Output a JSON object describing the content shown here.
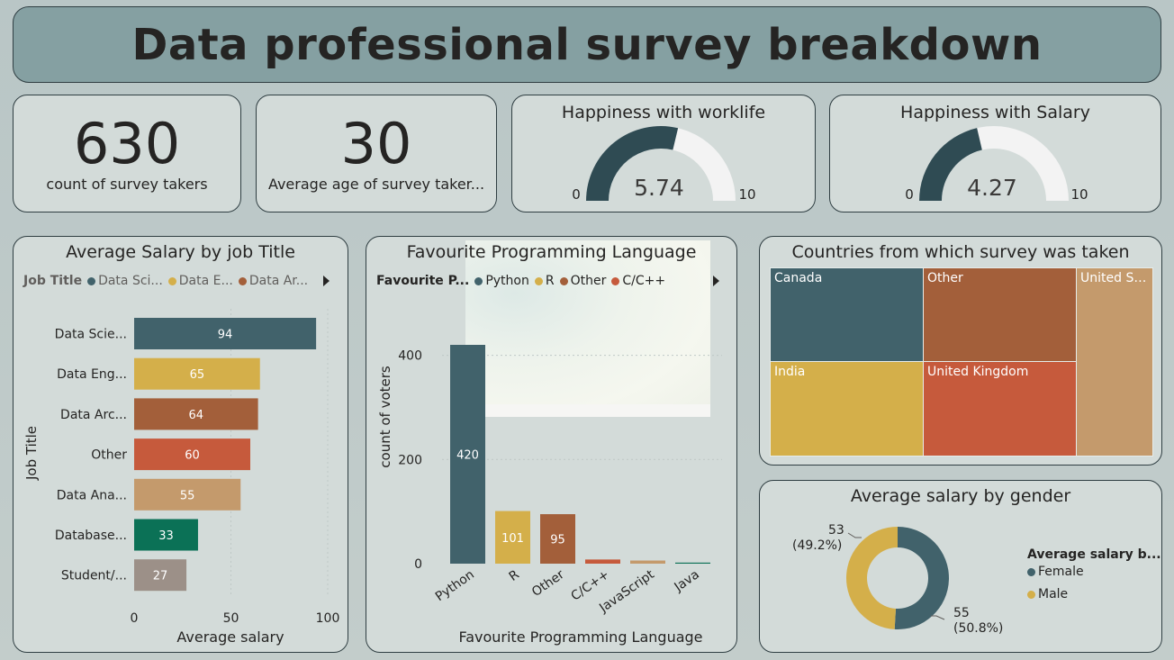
{
  "header": {
    "title": "Data professional survey breakdown"
  },
  "kpis": {
    "count": {
      "value": "630",
      "label": "count of survey takers"
    },
    "age": {
      "value": "30",
      "label": "Average age of survey taker..."
    }
  },
  "gauges": {
    "worklife": {
      "title": "Happiness with worklife",
      "value": 5.74,
      "value_label": "5.74",
      "min_label": "0",
      "max_label": "10",
      "min": 0,
      "max": 10
    },
    "salary": {
      "title": "Happiness with Salary",
      "value": 4.27,
      "value_label": "4.27",
      "min_label": "0",
      "max_label": "10",
      "min": 0,
      "max": 10
    }
  },
  "colors": {
    "teal": "#41626b",
    "gold": "#d4af4a",
    "brown": "#a35f3a",
    "red": "#c65a3c",
    "tan": "#c49a6c",
    "green": "#0b7156",
    "grey": "#9c9088",
    "gauge_fill": "#2f4b53",
    "gauge_track": "#f3f3f3"
  },
  "chart_data": [
    {
      "type": "bar",
      "orientation": "horizontal",
      "title": "Average Salary by job Title",
      "xlabel": "Average salary",
      "ylabel": "Job Title",
      "legend_title": "Job Title",
      "legend": [
        "Data Sci...",
        "Data E...",
        "Data Ar..."
      ],
      "categories": [
        "Data Scie...",
        "Data Eng...",
        "Data Arc...",
        "Other",
        "Data Ana...",
        "Database...",
        "Student/..."
      ],
      "values": [
        94,
        65,
        64,
        60,
        55,
        33,
        27
      ],
      "value_labels": [
        "94",
        "65",
        "64",
        "60",
        "55",
        "33",
        "27"
      ],
      "xlim": [
        0,
        100
      ],
      "xticks": [
        "0",
        "50",
        "100"
      ]
    },
    {
      "type": "bar",
      "title": "Favourite Programming Language",
      "xlabel": "Favourite Programming Language",
      "ylabel": "count of voters",
      "legend_title": "Favourite P...",
      "legend": [
        "Python",
        "R",
        "Other",
        "C/C++"
      ],
      "categories": [
        "Python",
        "R",
        "Other",
        "C/C++",
        "JavaScript",
        "Java"
      ],
      "values": [
        420,
        101,
        95,
        8,
        6,
        2
      ],
      "value_labels": [
        "420",
        "101",
        "95",
        "",
        "",
        ""
      ],
      "ylim": [
        0,
        480
      ],
      "yticks": [
        "0",
        "200",
        "400"
      ]
    },
    {
      "type": "treemap",
      "title": "Countries from which survey was taken",
      "categories": [
        "Canada",
        "Other",
        "United St...",
        "India",
        "United Kingdom"
      ]
    },
    {
      "type": "pie",
      "title": "Average salary by gender",
      "legend_title": "Average salary b...",
      "categories": [
        "Female",
        "Male"
      ],
      "values": [
        55,
        53
      ],
      "value_labels": [
        "55",
        "53"
      ],
      "percent_labels": [
        "(50.8%)",
        "(49.2%)"
      ]
    }
  ]
}
